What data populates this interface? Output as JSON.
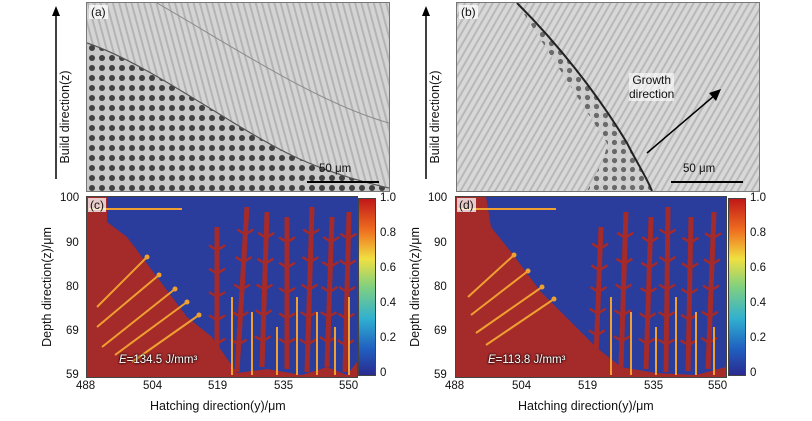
{
  "panels": {
    "a": {
      "tag": "(a)",
      "scale": "50 μm"
    },
    "b": {
      "tag": "(b)",
      "scale": "50 μm",
      "annotation_line1": "Growth",
      "annotation_line2": "direction"
    },
    "c": {
      "tag": "(c)",
      "energy_symbol": "E",
      "energy_value": "=134.5 J/mm³"
    },
    "d": {
      "tag": "(d)",
      "energy_symbol": "E",
      "energy_value": "=113.8 J/mm³"
    }
  },
  "build_direction_label": "Build direction(z)",
  "depth_axis_label": "Depth direction(z)/μm",
  "hatch_axis_label": "Hatching direction(y)/μm",
  "y_ticks": [
    "100",
    "90",
    "80",
    "69",
    "59"
  ],
  "x_ticks": [
    "488",
    "504",
    "519",
    "535",
    "550"
  ],
  "colorbar_ticks": [
    "1.0",
    "0.8",
    "0.6",
    "0.4",
    "0.2",
    "0"
  ],
  "colors": {
    "solid": "#a52a2a",
    "liquid": "#2a3c9c",
    "arrow": "#f0a030"
  }
}
